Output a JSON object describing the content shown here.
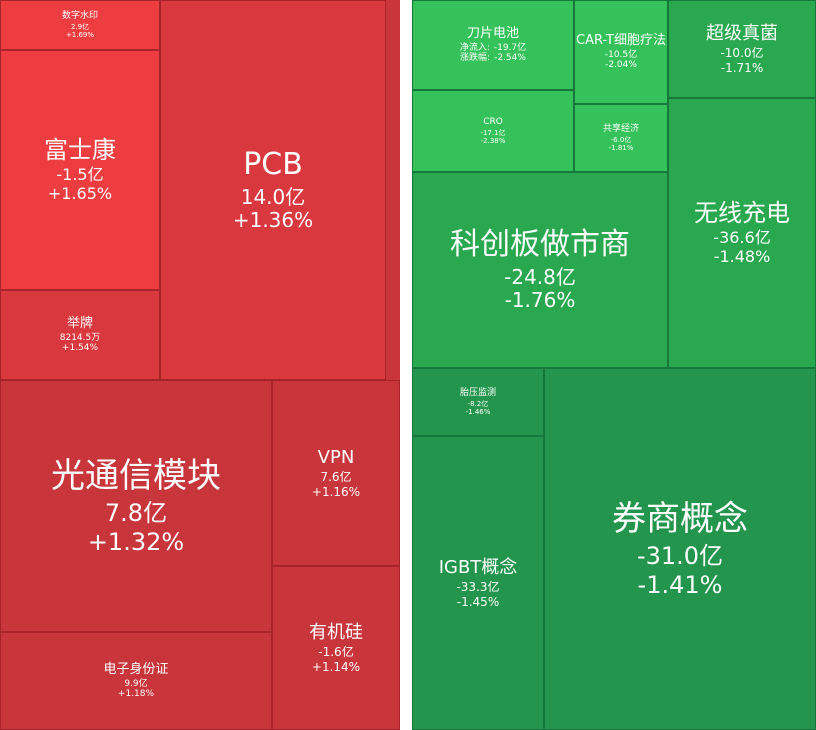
{
  "colors": {
    "up_strong": "#ed3d41",
    "up_mid": "#d9383e",
    "up_deep": "#c8353b",
    "down_light": "#35c25a",
    "down_mid": "#29a84f",
    "down_deep": "#23954c"
  },
  "chart_data": [
    {
      "type": "treemap",
      "series": [
        {
          "name": "数字水印",
          "net_flow": "2.9亿",
          "change_pct": "+1.69%",
          "size": "xs"
        },
        {
          "name": "富士康",
          "net_flow": "-1.5亿",
          "change_pct": "+1.65%",
          "size": "l"
        },
        {
          "name": "PCB",
          "net_flow": "14.0亿",
          "change_pct": "+1.36%",
          "size": "xl"
        },
        {
          "name": "举牌",
          "net_flow": "8214.5万",
          "change_pct": "+1.54%",
          "size": "s"
        },
        {
          "name": "光通信模块",
          "net_flow": "7.8亿",
          "change_pct": "+1.32%",
          "size": "xxl"
        },
        {
          "name": "VPN",
          "net_flow": "7.6亿",
          "change_pct": "+1.16%",
          "size": "m"
        },
        {
          "name": "电子身份证",
          "net_flow": "9.9亿",
          "change_pct": "+1.18%",
          "size": "s"
        },
        {
          "name": "有机硅",
          "net_flow": "-1.6亿",
          "change_pct": "+1.14%",
          "size": "m"
        }
      ]
    },
    {
      "type": "treemap",
      "series": [
        {
          "name": "刀片电池",
          "flow_label": "净流入:",
          "net_flow": "-19.7亿",
          "change_label": "涨跌幅:",
          "change_pct": "-2.54%",
          "size": "s"
        },
        {
          "name": "CAR-T细胞疗法",
          "net_flow": "-10.5亿",
          "change_pct": "-2.04%",
          "size": "s"
        },
        {
          "name": "超级真菌",
          "net_flow": "-10.0亿",
          "change_pct": "-1.71%",
          "size": "m"
        },
        {
          "name": "CRO",
          "net_flow": "-17.1亿",
          "change_pct": "-2.38%",
          "size": "xs"
        },
        {
          "name": "共享经济",
          "net_flow": "-6.0亿",
          "change_pct": "-1.81%",
          "size": "xs"
        },
        {
          "name": "科创板做市商",
          "net_flow": "-24.8亿",
          "change_pct": "-1.76%",
          "size": "xl"
        },
        {
          "name": "无线充电",
          "net_flow": "-36.6亿",
          "change_pct": "-1.48%",
          "size": "l"
        },
        {
          "name": "胎压监测",
          "net_flow": "-8.2亿",
          "change_pct": "-1.46%",
          "size": "xs"
        },
        {
          "name": "IGBT概念",
          "net_flow": "-33.3亿",
          "change_pct": "-1.45%",
          "size": "m"
        },
        {
          "name": "券商概念",
          "net_flow": "-31.0亿",
          "change_pct": "-1.41%",
          "size": "xxl"
        }
      ]
    }
  ]
}
